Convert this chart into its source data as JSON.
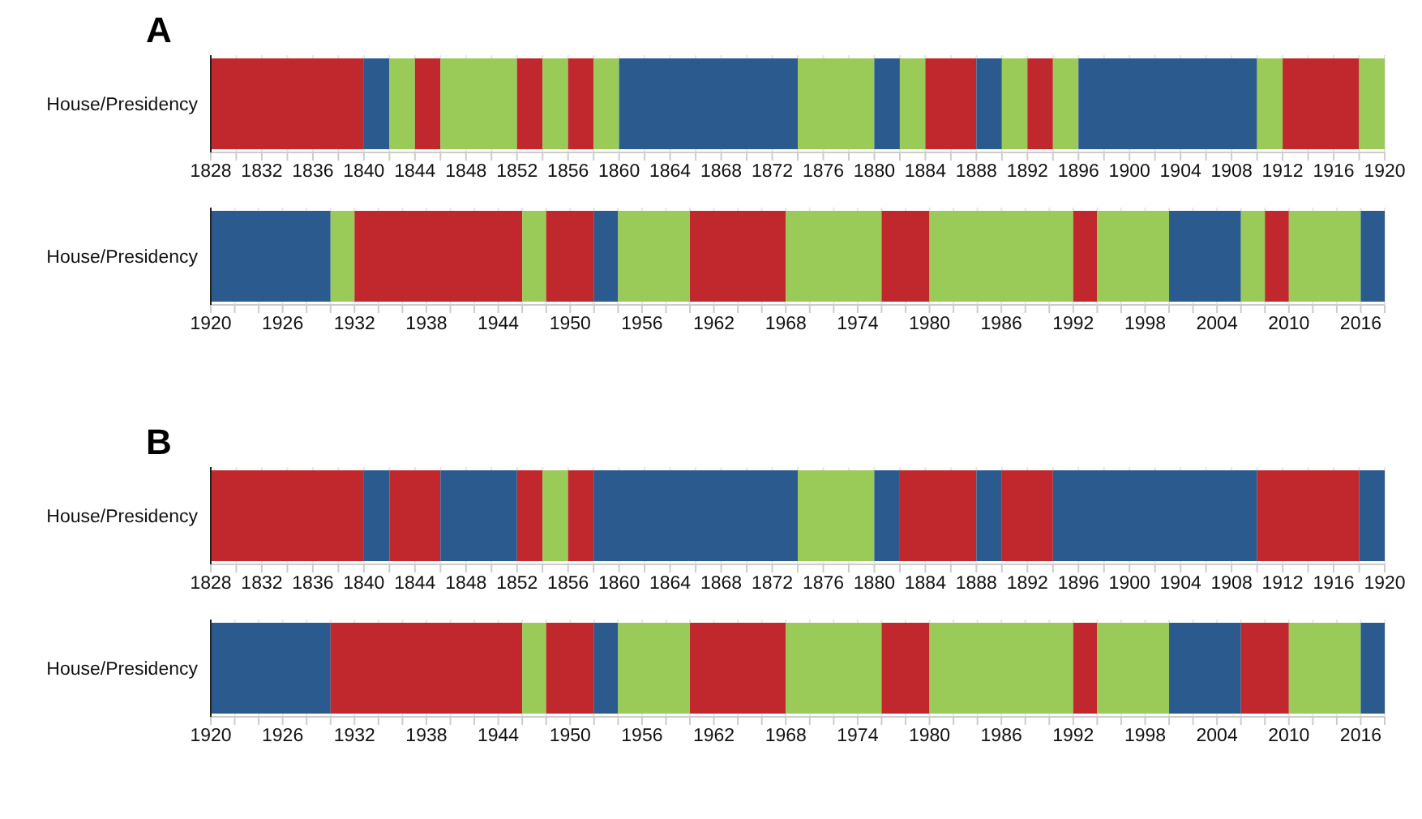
{
  "chart_data": [
    {
      "type": "bar",
      "title": "A",
      "orientation": "horizontal",
      "categories": [
        "House/Presidency"
      ],
      "grid": "x",
      "xlim": [
        1828,
        1920
      ],
      "xticks": [
        1828,
        {
          "value": 1830,
          "label": null
        },
        1832,
        {
          "value": 1834,
          "label": null
        },
        1836,
        {
          "value": 1838,
          "label": null
        },
        1840,
        {
          "value": 1842,
          "label": null
        },
        1844,
        {
          "value": 1846,
          "label": null
        },
        1848,
        {
          "value": 1850,
          "label": null
        },
        1852,
        {
          "value": 1854,
          "label": null
        },
        1856,
        {
          "value": 1858,
          "label": null
        },
        1860,
        {
          "value": 1862,
          "label": null
        },
        1864,
        {
          "value": 1866,
          "label": null
        },
        1868,
        {
          "value": 1870,
          "label": null
        },
        1872,
        {
          "value": 1874,
          "label": null
        },
        1876,
        {
          "value": 1878,
          "label": null
        },
        1880,
        {
          "value": 1882,
          "label": null
        },
        1884,
        {
          "value": 1886,
          "label": null
        },
        1888,
        {
          "value": 1890,
          "label": null
        },
        1892,
        {
          "value": 1894,
          "label": null
        },
        1896,
        {
          "value": 1898,
          "label": null
        },
        1900,
        {
          "value": 1902,
          "label": null
        },
        1904,
        {
          "value": 1906,
          "label": null
        },
        1908,
        {
          "value": 1910,
          "label": null
        },
        1912,
        {
          "value": 1914,
          "label": null
        },
        1916,
        {
          "value": 1918,
          "label": null
        },
        1920
      ],
      "series": [
        {
          "color": "#c0282d",
          "base": [
            1828
          ],
          "values": [
            12
          ]
        },
        {
          "color": "#2a5a8e",
          "base": [
            1840
          ],
          "values": [
            2
          ]
        },
        {
          "color": "#9acb58",
          "base": [
            1842
          ],
          "values": [
            2
          ]
        },
        {
          "color": "#c0282d",
          "base": [
            1844
          ],
          "values": [
            2
          ]
        },
        {
          "color": "#9acb58",
          "base": [
            1846
          ],
          "values": [
            6
          ]
        },
        {
          "color": "#c0282d",
          "base": [
            1852
          ],
          "values": [
            2
          ]
        },
        {
          "color": "#9acb58",
          "base": [
            1854
          ],
          "values": [
            2
          ]
        },
        {
          "color": "#c0282d",
          "base": [
            1856
          ],
          "values": [
            2
          ]
        },
        {
          "color": "#9acb58",
          "base": [
            1858
          ],
          "values": [
            2
          ]
        },
        {
          "color": "#2a5a8e",
          "base": [
            1860
          ],
          "values": [
            14
          ]
        },
        {
          "color": "#9acb58",
          "base": [
            1874
          ],
          "values": [
            6
          ]
        },
        {
          "color": "#2a5a8e",
          "base": [
            1880
          ],
          "values": [
            2
          ]
        },
        {
          "color": "#9acb58",
          "base": [
            1882
          ],
          "values": [
            2
          ]
        },
        {
          "color": "#c0282d",
          "base": [
            1884
          ],
          "values": [
            4
          ]
        },
        {
          "color": "#2a5a8e",
          "base": [
            1888
          ],
          "values": [
            2
          ]
        },
        {
          "color": "#9acb58",
          "base": [
            1890
          ],
          "values": [
            2
          ]
        },
        {
          "color": "#c0282d",
          "base": [
            1892
          ],
          "values": [
            2
          ]
        },
        {
          "color": "#9acb58",
          "base": [
            1894
          ],
          "values": [
            2
          ]
        },
        {
          "color": "#2a5a8e",
          "base": [
            1896
          ],
          "values": [
            14
          ]
        },
        {
          "color": "#9acb58",
          "base": [
            1910
          ],
          "values": [
            2
          ]
        },
        {
          "color": "#c0282d",
          "base": [
            1912
          ],
          "values": [
            6
          ]
        },
        {
          "color": "#9acb58",
          "base": [
            1918
          ],
          "values": [
            2
          ]
        }
      ]
    },
    {
      "type": "bar",
      "orientation": "horizontal",
      "categories": [
        "House/Presidency"
      ],
      "grid": "x",
      "xlim": [
        1920,
        2018
      ],
      "xticks": [
        1920,
        {
          "value": 1922,
          "label": null
        },
        {
          "value": 1924,
          "label": null
        },
        1926,
        {
          "value": 1928,
          "label": null
        },
        {
          "value": 1930,
          "label": null
        },
        1932,
        {
          "value": 1934,
          "label": null
        },
        {
          "value": 1936,
          "label": null
        },
        1938,
        {
          "value": 1940,
          "label": null
        },
        {
          "value": 1942,
          "label": null
        },
        1944,
        {
          "value": 1946,
          "label": null
        },
        {
          "value": 1948,
          "label": null
        },
        1950,
        {
          "value": 1952,
          "label": null
        },
        {
          "value": 1954,
          "label": null
        },
        1956,
        {
          "value": 1958,
          "label": null
        },
        {
          "value": 1960,
          "label": null
        },
        1962,
        {
          "value": 1964,
          "label": null
        },
        {
          "value": 1966,
          "label": null
        },
        1968,
        {
          "value": 1970,
          "label": null
        },
        {
          "value": 1972,
          "label": null
        },
        1974,
        {
          "value": 1976,
          "label": null
        },
        {
          "value": 1978,
          "label": null
        },
        1980,
        {
          "value": 1982,
          "label": null
        },
        {
          "value": 1984,
          "label": null
        },
        1986,
        {
          "value": 1988,
          "label": null
        },
        {
          "value": 1990,
          "label": null
        },
        1992,
        {
          "value": 1994,
          "label": null
        },
        {
          "value": 1996,
          "label": null
        },
        1998,
        {
          "value": 2000,
          "label": null
        },
        {
          "value": 2002,
          "label": null
        },
        2004,
        {
          "value": 2006,
          "label": null
        },
        {
          "value": 2008,
          "label": null
        },
        2010,
        {
          "value": 2012,
          "label": null
        },
        {
          "value": 2014,
          "label": null
        },
        2016,
        {
          "value": 2018,
          "label": null
        }
      ],
      "series": [
        {
          "color": "#2a5a8e",
          "base": [
            1920
          ],
          "values": [
            10
          ]
        },
        {
          "color": "#9acb58",
          "base": [
            1930
          ],
          "values": [
            2
          ]
        },
        {
          "color": "#c0282d",
          "base": [
            1932
          ],
          "values": [
            14
          ]
        },
        {
          "color": "#9acb58",
          "base": [
            1946
          ],
          "values": [
            2
          ]
        },
        {
          "color": "#c0282d",
          "base": [
            1948
          ],
          "values": [
            4
          ]
        },
        {
          "color": "#2a5a8e",
          "base": [
            1952
          ],
          "values": [
            2
          ]
        },
        {
          "color": "#9acb58",
          "base": [
            1954
          ],
          "values": [
            6
          ]
        },
        {
          "color": "#c0282d",
          "base": [
            1960
          ],
          "values": [
            8
          ]
        },
        {
          "color": "#9acb58",
          "base": [
            1968
          ],
          "values": [
            8
          ]
        },
        {
          "color": "#c0282d",
          "base": [
            1976
          ],
          "values": [
            4
          ]
        },
        {
          "color": "#9acb58",
          "base": [
            1980
          ],
          "values": [
            12
          ]
        },
        {
          "color": "#c0282d",
          "base": [
            1992
          ],
          "values": [
            2
          ]
        },
        {
          "color": "#9acb58",
          "base": [
            1994
          ],
          "values": [
            6
          ]
        },
        {
          "color": "#2a5a8e",
          "base": [
            2000
          ],
          "values": [
            6
          ]
        },
        {
          "color": "#9acb58",
          "base": [
            2006
          ],
          "values": [
            2
          ]
        },
        {
          "color": "#c0282d",
          "base": [
            2008
          ],
          "values": [
            2
          ]
        },
        {
          "color": "#9acb58",
          "base": [
            2010
          ],
          "values": [
            6
          ]
        },
        {
          "color": "#2a5a8e",
          "base": [
            2016
          ],
          "values": [
            2
          ]
        }
      ]
    },
    {
      "type": "bar",
      "title": "B",
      "orientation": "horizontal",
      "categories": [
        "House/Presidency"
      ],
      "grid": "x",
      "xlim": [
        1828,
        1920
      ],
      "xticks": [
        1828,
        {
          "value": 1830,
          "label": null
        },
        1832,
        {
          "value": 1834,
          "label": null
        },
        1836,
        {
          "value": 1838,
          "label": null
        },
        1840,
        {
          "value": 1842,
          "label": null
        },
        1844,
        {
          "value": 1846,
          "label": null
        },
        1848,
        {
          "value": 1850,
          "label": null
        },
        1852,
        {
          "value": 1854,
          "label": null
        },
        1856,
        {
          "value": 1858,
          "label": null
        },
        1860,
        {
          "value": 1862,
          "label": null
        },
        1864,
        {
          "value": 1866,
          "label": null
        },
        1868,
        {
          "value": 1870,
          "label": null
        },
        1872,
        {
          "value": 1874,
          "label": null
        },
        1876,
        {
          "value": 1878,
          "label": null
        },
        1880,
        {
          "value": 1882,
          "label": null
        },
        1884,
        {
          "value": 1886,
          "label": null
        },
        1888,
        {
          "value": 1890,
          "label": null
        },
        1892,
        {
          "value": 1894,
          "label": null
        },
        1896,
        {
          "value": 1898,
          "label": null
        },
        1900,
        {
          "value": 1902,
          "label": null
        },
        1904,
        {
          "value": 1906,
          "label": null
        },
        1908,
        {
          "value": 1910,
          "label": null
        },
        1912,
        {
          "value": 1914,
          "label": null
        },
        1916,
        {
          "value": 1918,
          "label": null
        },
        1920
      ],
      "series": [
        {
          "color": "#c0282d",
          "base": [
            1828
          ],
          "values": [
            12
          ]
        },
        {
          "color": "#2a5a8e",
          "base": [
            1840
          ],
          "values": [
            2
          ]
        },
        {
          "color": "#c0282d",
          "base": [
            1842
          ],
          "values": [
            4
          ]
        },
        {
          "color": "#2a5a8e",
          "base": [
            1846
          ],
          "values": [
            6
          ]
        },
        {
          "color": "#c0282d",
          "base": [
            1852
          ],
          "values": [
            2
          ]
        },
        {
          "color": "#9acb58",
          "base": [
            1854
          ],
          "values": [
            2
          ]
        },
        {
          "color": "#c0282d",
          "base": [
            1856
          ],
          "values": [
            2
          ]
        },
        {
          "color": "#2a5a8e",
          "base": [
            1858
          ],
          "values": [
            16
          ]
        },
        {
          "color": "#9acb58",
          "base": [
            1874
          ],
          "values": [
            6
          ]
        },
        {
          "color": "#2a5a8e",
          "base": [
            1880
          ],
          "values": [
            2
          ]
        },
        {
          "color": "#c0282d",
          "base": [
            1882
          ],
          "values": [
            6
          ]
        },
        {
          "color": "#2a5a8e",
          "base": [
            1888
          ],
          "values": [
            2
          ]
        },
        {
          "color": "#c0282d",
          "base": [
            1890
          ],
          "values": [
            4
          ]
        },
        {
          "color": "#2a5a8e",
          "base": [
            1894
          ],
          "values": [
            16
          ]
        },
        {
          "color": "#c0282d",
          "base": [
            1910
          ],
          "values": [
            8
          ]
        },
        {
          "color": "#2a5a8e",
          "base": [
            1918
          ],
          "values": [
            2
          ]
        }
      ]
    },
    {
      "type": "bar",
      "orientation": "horizontal",
      "categories": [
        "House/Presidency"
      ],
      "grid": "x",
      "xlim": [
        1920,
        2018
      ],
      "xticks": [
        1920,
        {
          "value": 1922,
          "label": null
        },
        {
          "value": 1924,
          "label": null
        },
        1926,
        {
          "value": 1928,
          "label": null
        },
        {
          "value": 1930,
          "label": null
        },
        1932,
        {
          "value": 1934,
          "label": null
        },
        {
          "value": 1936,
          "label": null
        },
        1938,
        {
          "value": 1940,
          "label": null
        },
        {
          "value": 1942,
          "label": null
        },
        1944,
        {
          "value": 1946,
          "label": null
        },
        {
          "value": 1948,
          "label": null
        },
        1950,
        {
          "value": 1952,
          "label": null
        },
        {
          "value": 1954,
          "label": null
        },
        1956,
        {
          "value": 1958,
          "label": null
        },
        {
          "value": 1960,
          "label": null
        },
        1962,
        {
          "value": 1964,
          "label": null
        },
        {
          "value": 1966,
          "label": null
        },
        1968,
        {
          "value": 1970,
          "label": null
        },
        {
          "value": 1972,
          "label": null
        },
        1974,
        {
          "value": 1976,
          "label": null
        },
        {
          "value": 1978,
          "label": null
        },
        1980,
        {
          "value": 1982,
          "label": null
        },
        {
          "value": 1984,
          "label": null
        },
        1986,
        {
          "value": 1988,
          "label": null
        },
        {
          "value": 1990,
          "label": null
        },
        1992,
        {
          "value": 1994,
          "label": null
        },
        {
          "value": 1996,
          "label": null
        },
        1998,
        {
          "value": 2000,
          "label": null
        },
        {
          "value": 2002,
          "label": null
        },
        2004,
        {
          "value": 2006,
          "label": null
        },
        {
          "value": 2008,
          "label": null
        },
        2010,
        {
          "value": 2012,
          "label": null
        },
        {
          "value": 2014,
          "label": null
        },
        2016,
        {
          "value": 2018,
          "label": null
        }
      ],
      "series": [
        {
          "color": "#2a5a8e",
          "base": [
            1920
          ],
          "values": [
            10
          ]
        },
        {
          "color": "#c0282d",
          "base": [
            1930
          ],
          "values": [
            16
          ]
        },
        {
          "color": "#9acb58",
          "base": [
            1946
          ],
          "values": [
            2
          ]
        },
        {
          "color": "#c0282d",
          "base": [
            1948
          ],
          "values": [
            4
          ]
        },
        {
          "color": "#2a5a8e",
          "base": [
            1952
          ],
          "values": [
            2
          ]
        },
        {
          "color": "#9acb58",
          "base": [
            1954
          ],
          "values": [
            6
          ]
        },
        {
          "color": "#c0282d",
          "base": [
            1960
          ],
          "values": [
            8
          ]
        },
        {
          "color": "#9acb58",
          "base": [
            1968
          ],
          "values": [
            8
          ]
        },
        {
          "color": "#c0282d",
          "base": [
            1976
          ],
          "values": [
            4
          ]
        },
        {
          "color": "#9acb58",
          "base": [
            1980
          ],
          "values": [
            12
          ]
        },
        {
          "color": "#c0282d",
          "base": [
            1992
          ],
          "values": [
            2
          ]
        },
        {
          "color": "#9acb58",
          "base": [
            1994
          ],
          "values": [
            6
          ]
        },
        {
          "color": "#2a5a8e",
          "base": [
            2000
          ],
          "values": [
            6
          ]
        },
        {
          "color": "#c0282d",
          "base": [
            2006
          ],
          "values": [
            4
          ]
        },
        {
          "color": "#9acb58",
          "base": [
            2010
          ],
          "values": [
            6
          ]
        },
        {
          "color": "#2a5a8e",
          "base": [
            2016
          ],
          "values": [
            2
          ]
        }
      ]
    }
  ]
}
